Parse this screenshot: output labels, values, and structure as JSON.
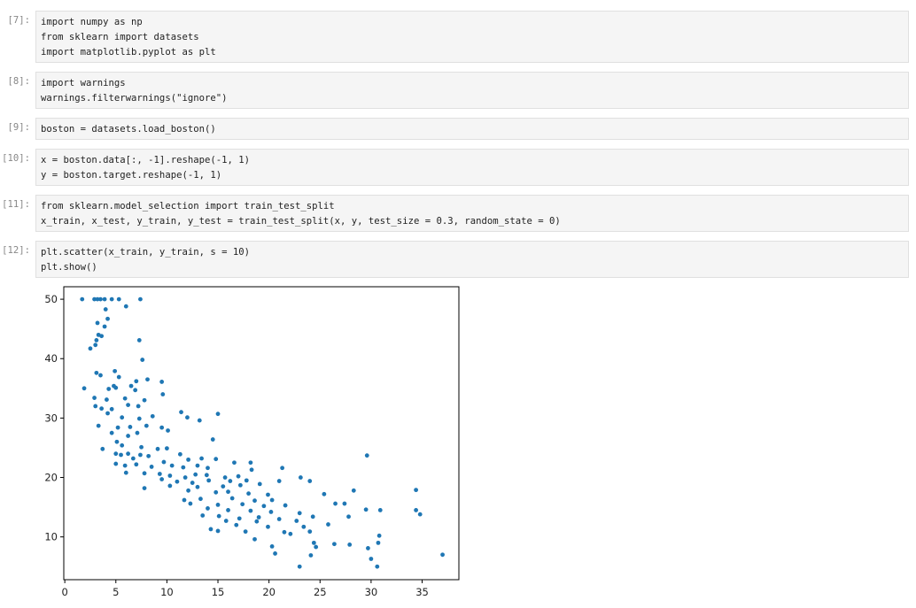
{
  "cells": [
    {
      "prompt": "[7]:",
      "lines": [
        "import numpy as np",
        "from sklearn import datasets",
        "import matplotlib.pyplot as plt"
      ]
    },
    {
      "prompt": "[8]:",
      "lines": [
        "import warnings",
        "warnings.filterwarnings(\"ignore\")"
      ]
    },
    {
      "prompt": "[9]:",
      "lines": [
        "boston = datasets.load_boston()"
      ]
    },
    {
      "prompt": "[10]:",
      "lines": [
        "x = boston.data[:, -1].reshape(-1, 1)",
        "y = boston.target.reshape(-1, 1)"
      ]
    },
    {
      "prompt": "[11]:",
      "lines": [
        "from sklearn.model_selection import train_test_split",
        "x_train, x_test, y_train, y_test = train_test_split(x, y, test_size = 0.3, random_state = 0)"
      ]
    },
    {
      "prompt": "[12]:",
      "lines": [
        "plt.scatter(x_train, y_train, s = 10)",
        "plt.show()"
      ]
    }
  ],
  "chart_data": {
    "type": "scatter",
    "color": "#1f77b4",
    "xlim": [
      -0.1,
      38.6
    ],
    "ylim": [
      2.8,
      52.1
    ],
    "xticks": [
      0,
      5,
      10,
      15,
      20,
      25,
      30,
      35
    ],
    "yticks": [
      10,
      20,
      30,
      40,
      50
    ],
    "x": [
      1.7,
      2.9,
      3.2,
      3.5,
      3.9,
      4.6,
      5.3,
      7.4,
      6.0,
      4.0,
      4.2,
      3.2,
      3.9,
      3.3,
      3.6,
      3.1,
      7.3,
      2.5,
      3.0,
      7.6,
      3.1,
      3.5,
      4.9,
      5.3,
      7.0,
      8.1,
      9.5,
      1.9,
      4.3,
      4.8,
      5.0,
      6.5,
      6.9,
      9.6,
      2.9,
      4.1,
      5.9,
      7.8,
      3.0,
      3.6,
      4.6,
      6.2,
      7.2,
      11.4,
      15.0,
      4.2,
      5.6,
      7.3,
      8.6,
      12.0,
      13.2,
      3.3,
      5.2,
      6.4,
      8.0,
      9.5,
      10.1,
      4.6,
      6.2,
      7.1,
      14.5,
      5.1,
      5.6,
      7.5,
      3.7,
      9.1,
      10.0,
      5.0,
      5.5,
      6.2,
      6.7,
      7.4,
      8.2,
      11.3,
      12.1,
      13.4,
      14.8,
      16.6,
      18.2,
      5.0,
      5.9,
      7.0,
      8.5,
      9.7,
      10.5,
      11.6,
      13.0,
      14.0,
      21.3,
      6.0,
      7.8,
      9.3,
      10.3,
      11.8,
      12.8,
      13.9,
      15.7,
      17.0,
      18.3,
      23.1,
      24.0,
      9.5,
      11.0,
      12.5,
      14.1,
      16.2,
      17.8,
      21.0,
      10.3,
      13.0,
      15.5,
      17.2,
      19.1,
      7.8,
      12.1,
      14.8,
      16.0,
      18.0,
      19.9,
      25.4,
      28.3,
      34.4,
      13.3,
      16.4,
      18.6,
      20.3,
      26.5,
      27.4,
      11.7,
      12.3,
      15.0,
      17.4,
      19.5,
      21.6,
      14.0,
      16.0,
      18.2,
      20.2,
      23.0,
      29.5,
      30.9,
      34.4,
      34.8,
      13.5,
      15.1,
      17.1,
      19.0,
      21.0,
      24.3,
      27.8,
      15.8,
      18.8,
      22.7,
      25.8,
      16.8,
      19.9,
      23.4,
      14.3,
      17.7,
      21.5,
      24.0,
      26.4,
      27.9,
      30.8,
      30.7,
      29.7,
      15.0,
      18.6,
      22.1,
      24.4,
      20.3,
      24.6,
      20.6,
      24.1,
      30.0,
      23.0,
      30.6,
      37.0,
      29.6
    ],
    "values": [
      50,
      50,
      50,
      50,
      50,
      50,
      50,
      50,
      48.8,
      48.3,
      46.7,
      46,
      45.4,
      44,
      43.8,
      43.1,
      43.1,
      41.7,
      42.3,
      39.8,
      37.6,
      37.2,
      37.9,
      36.9,
      36.2,
      36.5,
      36.1,
      35,
      34.9,
      35.4,
      35.1,
      35.4,
      34.7,
      34.0,
      33.4,
      33.1,
      33.3,
      33.0,
      32.0,
      31.6,
      31.5,
      32.2,
      32.0,
      31.0,
      30.7,
      30.8,
      30.1,
      29.9,
      30.3,
      30.1,
      29.6,
      28.7,
      28.4,
      28.5,
      28.7,
      28.4,
      27.9,
      27.5,
      27.0,
      27.5,
      26.4,
      26.0,
      25.4,
      25.1,
      24.8,
      24.8,
      24.9,
      24.0,
      23.8,
      24.0,
      23.2,
      23.8,
      23.6,
      23.9,
      23.0,
      23.2,
      23.1,
      22.5,
      22.5,
      22.3,
      22.0,
      22.2,
      21.8,
      22.6,
      22.0,
      21.7,
      22.0,
      21.6,
      21.6,
      20.8,
      20.7,
      20.6,
      20.3,
      20.0,
      20.5,
      20.4,
      20.0,
      20.2,
      21.3,
      20.0,
      19.4,
      19.7,
      19.3,
      19.1,
      19.5,
      19.4,
      19.5,
      19.4,
      18.6,
      18.4,
      18.5,
      18.7,
      18.9,
      18.2,
      17.8,
      17.5,
      17.6,
      17.3,
      17.1,
      17.2,
      17.8,
      17.9,
      16.4,
      16.5,
      16.1,
      16.2,
      15.6,
      15.6,
      16.2,
      15.6,
      15.4,
      15.5,
      15.2,
      15.3,
      14.8,
      14.5,
      14.4,
      14.2,
      14.0,
      14.6,
      14.5,
      14.5,
      13.8,
      13.6,
      13.5,
      13.1,
      13.3,
      13.0,
      13.4,
      13.4,
      12.7,
      12.6,
      12.7,
      12.1,
      12.0,
      11.7,
      11.7,
      11.3,
      10.9,
      10.8,
      10.9,
      8.8,
      8.7,
      10.2,
      9.0,
      8.1,
      11.0,
      9.6,
      10.5,
      9.0,
      8.4,
      8.3,
      7.2,
      6.9,
      6.3,
      5.0,
      5.0,
      7.0,
      23.7
    ]
  }
}
